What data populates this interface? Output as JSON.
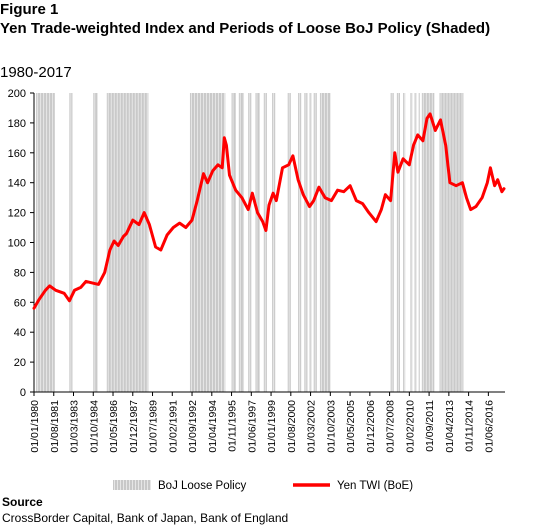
{
  "figure_label": "Figure 1",
  "title": "Yen Trade-weighted Index and Periods of Loose BoJ Policy (Shaded)",
  "subtitle": "1980-2017",
  "source": {
    "heading": "Source",
    "text": "CrossBorder Capital, Bank of Japan, Bank of England"
  },
  "chart_data": {
    "type": "line",
    "title": "Yen Trade-weighted Index and Periods of Loose BoJ Policy (Shaded)",
    "ylim": [
      0,
      200
    ],
    "y_ticks": [
      0,
      20,
      40,
      60,
      80,
      100,
      120,
      140,
      160,
      180,
      200
    ],
    "xlim": [
      "1980-01",
      "2017-10"
    ],
    "x_tick_labels": [
      "01/01/1980",
      "01/08/1981",
      "01/03/1983",
      "01/10/1984",
      "01/05/1986",
      "01/12/1987",
      "01/07/1989",
      "01/02/1991",
      "01/09/1992",
      "01/04/1994",
      "01/11/1995",
      "01/06/1997",
      "01/01/1999",
      "01/08/2000",
      "01/03/2002",
      "01/10/2003",
      "01/05/2005",
      "01/12/2006",
      "01/07/2008",
      "01/02/2010",
      "01/09/2011",
      "01/04/2013",
      "01/11/2014",
      "01/06/2016"
    ],
    "grid": false,
    "legend_position": "bottom",
    "legend": [
      {
        "label": "BoJ Loose Policy",
        "type": "shaded",
        "color": "#c8c8c8"
      },
      {
        "label": "Yen TWI (BoE)",
        "type": "line",
        "color": "#ff0000"
      }
    ],
    "series": [
      {
        "name": "Yen TWI (BoE)",
        "color": "#ff0000",
        "points": [
          [
            "1980-01",
            56
          ],
          [
            "1980-06",
            62
          ],
          [
            "1980-12",
            68
          ],
          [
            "1981-04",
            71
          ],
          [
            "1981-10",
            68
          ],
          [
            "1982-06",
            66
          ],
          [
            "1982-11",
            61
          ],
          [
            "1983-04",
            68
          ],
          [
            "1983-10",
            70
          ],
          [
            "1984-03",
            74
          ],
          [
            "1984-09",
            73
          ],
          [
            "1985-03",
            72
          ],
          [
            "1985-09",
            80
          ],
          [
            "1986-02",
            95
          ],
          [
            "1986-06",
            101
          ],
          [
            "1986-10",
            98
          ],
          [
            "1987-03",
            104
          ],
          [
            "1987-06",
            106
          ],
          [
            "1987-12",
            115
          ],
          [
            "1988-06",
            112
          ],
          [
            "1988-11",
            120
          ],
          [
            "1989-04",
            112
          ],
          [
            "1989-10",
            97
          ],
          [
            "1990-03",
            95
          ],
          [
            "1990-09",
            105
          ],
          [
            "1991-03",
            110
          ],
          [
            "1991-09",
            113
          ],
          [
            "1992-03",
            110
          ],
          [
            "1992-09",
            115
          ],
          [
            "1993-02",
            128
          ],
          [
            "1993-08",
            146
          ],
          [
            "1993-12",
            140
          ],
          [
            "1994-05",
            148
          ],
          [
            "1994-10",
            152
          ],
          [
            "1995-02",
            150
          ],
          [
            "1995-04",
            170
          ],
          [
            "1995-06",
            165
          ],
          [
            "1995-09",
            145
          ],
          [
            "1996-03",
            135
          ],
          [
            "1996-09",
            130
          ],
          [
            "1997-03",
            122
          ],
          [
            "1997-07",
            133
          ],
          [
            "1997-12",
            120
          ],
          [
            "1998-05",
            114
          ],
          [
            "1998-08",
            108
          ],
          [
            "1998-11",
            125
          ],
          [
            "1999-03",
            133
          ],
          [
            "1999-06",
            128
          ],
          [
            "1999-12",
            150
          ],
          [
            "2000-06",
            152
          ],
          [
            "2000-10",
            158
          ],
          [
            "2001-03",
            142
          ],
          [
            "2001-08",
            132
          ],
          [
            "2002-02",
            124
          ],
          [
            "2002-06",
            128
          ],
          [
            "2002-11",
            137
          ],
          [
            "2003-05",
            130
          ],
          [
            "2003-11",
            128
          ],
          [
            "2004-05",
            135
          ],
          [
            "2004-11",
            134
          ],
          [
            "2005-05",
            138
          ],
          [
            "2005-11",
            128
          ],
          [
            "2006-05",
            126
          ],
          [
            "2006-11",
            120
          ],
          [
            "2007-06",
            114
          ],
          [
            "2007-11",
            122
          ],
          [
            "2008-03",
            132
          ],
          [
            "2008-08",
            128
          ],
          [
            "2008-12",
            160
          ],
          [
            "2009-03",
            147
          ],
          [
            "2009-08",
            156
          ],
          [
            "2010-02",
            152
          ],
          [
            "2010-06",
            165
          ],
          [
            "2010-10",
            172
          ],
          [
            "2011-03",
            168
          ],
          [
            "2011-07",
            183
          ],
          [
            "2011-10",
            186
          ],
          [
            "2012-03",
            175
          ],
          [
            "2012-08",
            182
          ],
          [
            "2013-01",
            165
          ],
          [
            "2013-05",
            140
          ],
          [
            "2013-11",
            138
          ],
          [
            "2014-05",
            140
          ],
          [
            "2014-09",
            130
          ],
          [
            "2015-01",
            122
          ],
          [
            "2015-06",
            124
          ],
          [
            "2015-12",
            130
          ],
          [
            "2016-05",
            140
          ],
          [
            "2016-08",
            150
          ],
          [
            "2016-12",
            138
          ],
          [
            "2017-03",
            142
          ],
          [
            "2017-07",
            134
          ],
          [
            "2017-09",
            136
          ]
        ]
      }
    ],
    "shaded_periods": [
      [
        "1980-03",
        "1981-09"
      ],
      [
        "1982-11",
        "1983-02"
      ],
      [
        "1984-10",
        "1985-02"
      ],
      [
        "1985-11",
        "1989-03"
      ],
      [
        "1992-07",
        "1995-05"
      ],
      [
        "1995-11",
        "1996-03"
      ],
      [
        "1996-06",
        "1996-11"
      ],
      [
        "1997-03",
        "1997-06"
      ],
      [
        "1997-10",
        "1998-02"
      ],
      [
        "1998-06",
        "1998-09"
      ],
      [
        "1999-02",
        "1999-05"
      ],
      [
        "2000-05",
        "2000-08"
      ],
      [
        "2001-03",
        "2001-06"
      ],
      [
        "2001-09",
        "2001-12"
      ],
      [
        "2002-02",
        "2002-04"
      ],
      [
        "2002-06",
        "2002-09"
      ],
      [
        "2002-12",
        "2003-10"
      ],
      [
        "2008-08",
        "2008-11"
      ],
      [
        "2009-02",
        "2009-05"
      ],
      [
        "2009-08",
        "2009-10"
      ],
      [
        "2010-03",
        "2010-05"
      ],
      [
        "2010-07",
        "2010-09"
      ],
      [
        "2010-11",
        "2010-12"
      ],
      [
        "2011-02",
        "2012-02"
      ],
      [
        "2012-07",
        "2014-06"
      ]
    ]
  }
}
